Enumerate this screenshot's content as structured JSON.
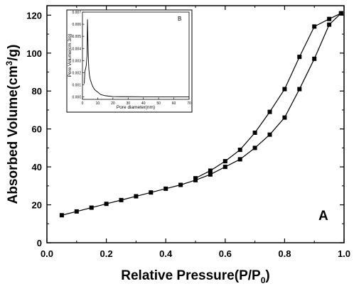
{
  "chart_data": [
    {
      "type": "line",
      "title": "",
      "xlabel_main": "Relative Pressure(P/P",
      "xlabel_sub": "0",
      "xlabel_end": ")",
      "ylabel_main": "Absorbed Volume(cm",
      "ylabel_sup": "3",
      "ylabel_end": "/g)",
      "panel_label": "A",
      "xlim": [
        0.0,
        1.0
      ],
      "ylim": [
        0,
        125
      ],
      "x_ticks": [
        "0.0",
        "0.2",
        "0.4",
        "0.6",
        "0.8",
        "1.0"
      ],
      "y_ticks": [
        "0",
        "20",
        "40",
        "60",
        "80",
        "100",
        "120"
      ],
      "x_tick_values": [
        0.0,
        0.2,
        0.4,
        0.6,
        0.8,
        1.0
      ],
      "y_tick_values": [
        0,
        20,
        40,
        60,
        80,
        100,
        120
      ],
      "series": [
        {
          "x": [
            0.05,
            0.1,
            0.15,
            0.2,
            0.25,
            0.3,
            0.35,
            0.4,
            0.45,
            0.5,
            0.55,
            0.6,
            0.65,
            0.7,
            0.75,
            0.8,
            0.85,
            0.9,
            0.95,
            0.99
          ],
          "values": [
            14.5,
            16.5,
            18.5,
            20.5,
            22.5,
            24.5,
            26.5,
            28.5,
            30.5,
            33,
            36,
            40,
            44,
            50,
            57,
            66,
            81,
            97,
            115,
            121
          ]
        },
        {
          "x": [
            0.5,
            0.55,
            0.6,
            0.65,
            0.7,
            0.75,
            0.8,
            0.85,
            0.9,
            0.95,
            0.99
          ],
          "values": [
            34,
            38,
            43,
            49,
            58,
            69,
            81,
            98,
            114,
            118,
            121
          ]
        }
      ],
      "marker": "square",
      "color": "#000000",
      "grid": false
    },
    {
      "type": "line",
      "title": "",
      "xlabel": "Pore diameter(nm)",
      "ylabel": "Pore Volume(cm   3/g)",
      "panel_label": "B",
      "xlim": [
        0,
        70
      ],
      "ylim": [
        -0.0002,
        0.007
      ],
      "x_ticks": [
        "0",
        "10",
        "20",
        "30",
        "40",
        "50",
        "60",
        "70"
      ],
      "y_ticks": [
        "0.000",
        "0.001",
        "0.002",
        "0.003",
        "0.004",
        "0.005",
        "0.006",
        "0.007"
      ],
      "x_tick_values": [
        0,
        10,
        20,
        30,
        40,
        50,
        60,
        70
      ],
      "y_tick_values": [
        0,
        0.001,
        0.002,
        0.003,
        0.004,
        0.005,
        0.006,
        0.007
      ],
      "series": [
        {
          "x": [
            1.2,
            1.6,
            2.0,
            2.5,
            3.0,
            3.3,
            3.6,
            3.9,
            4.2,
            4.6,
            5.0,
            6.0,
            7.0,
            8.0,
            10.0,
            12.0,
            15.0,
            20.0,
            25.0,
            30.0,
            40.0,
            50.0,
            60.0,
            70.0
          ],
          "values": [
            0.0011,
            0.0021,
            0.0023,
            0.0026,
            0.0034,
            0.0064,
            0.0046,
            0.0031,
            0.0023,
            0.0018,
            0.0015,
            0.0011,
            0.0008,
            0.0006,
            0.0004,
            0.0002,
            0.0001,
            3e-05,
            2e-05,
            2e-05,
            1e-05,
            1e-05,
            1e-05,
            1e-05
          ]
        }
      ],
      "color": "#000000",
      "grid": false
    }
  ]
}
